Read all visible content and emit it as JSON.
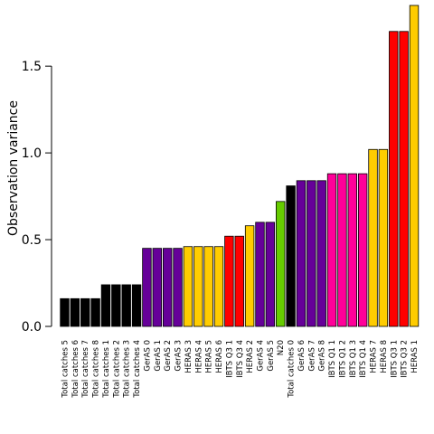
{
  "chart_data": {
    "type": "bar",
    "title": "",
    "xlabel": "",
    "ylabel": "Observation variance",
    "ylim": [
      0,
      1.85
    ],
    "yticks": [
      0.0,
      0.5,
      1.0,
      1.5
    ],
    "ytick_labels": [
      "0.0",
      "0.5",
      "1.0",
      "1.5"
    ],
    "grid": false,
    "categories": [
      "Total catches 5",
      "Total catches 6",
      "Total catches 7",
      "Total catches 8",
      "Total catches 1",
      "Total catches 2",
      "Total catches 3",
      "Total catches 4",
      "GerAS 0",
      "GerAS 1",
      "GerAS 2",
      "GerAS 3",
      "HERAS 3",
      "HERAS 4",
      "HERAS 5",
      "HERAS 6",
      "IBTS Q3 1",
      "IBTS Q3 4",
      "HERAS 2",
      "GerAS 4",
      "GerAS 5",
      "N20",
      "Total catches 0",
      "GerAS 6",
      "GerAS 7",
      "GerAS 8",
      "IBTS Q1 1",
      "IBTS Q1 2",
      "IBTS Q1 3",
      "IBTS Q1 4",
      "HERAS 7",
      "HERAS 8",
      "IBTS Q3 1",
      "IBTS Q3 2",
      "HERAS 1"
    ],
    "values": [
      0.16,
      0.16,
      0.16,
      0.16,
      0.24,
      0.24,
      0.24,
      0.24,
      0.45,
      0.45,
      0.45,
      0.45,
      0.46,
      0.46,
      0.46,
      0.46,
      0.52,
      0.52,
      0.58,
      0.6,
      0.6,
      0.72,
      0.81,
      0.84,
      0.84,
      0.84,
      0.88,
      0.88,
      0.88,
      0.88,
      1.02,
      1.02,
      1.7,
      1.7,
      1.85
    ],
    "bar_colors": [
      "#000000",
      "#000000",
      "#000000",
      "#000000",
      "#000000",
      "#000000",
      "#000000",
      "#000000",
      "#660099",
      "#660099",
      "#660099",
      "#660099",
      "#FFCC00",
      "#FFCC00",
      "#FFCC00",
      "#FFCC00",
      "#FF0000",
      "#FF0000",
      "#FFCC00",
      "#660099",
      "#660099",
      "#66CC00",
      "#000000",
      "#660099",
      "#660099",
      "#660099",
      "#FF0099",
      "#FF0099",
      "#FF0099",
      "#FF0099",
      "#FFCC00",
      "#FFCC00",
      "#FF0000",
      "#FF0000",
      "#FFCC00"
    ]
  }
}
